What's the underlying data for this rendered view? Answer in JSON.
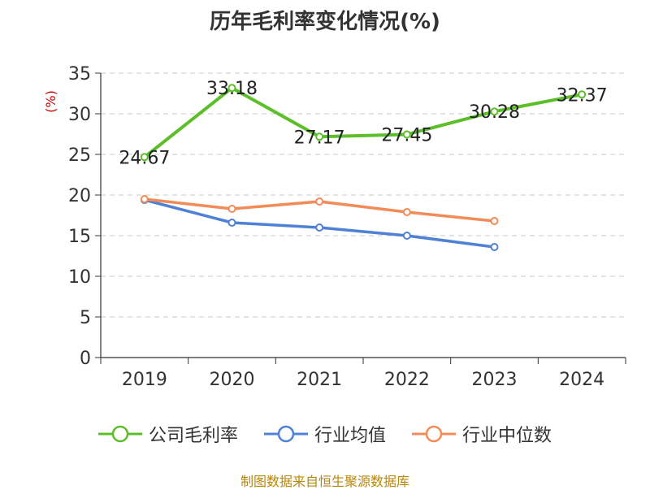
{
  "title": "历年毛利率变化情况(%)",
  "footer": "制图数据来自恒生聚源数据库",
  "colors": {
    "company": "#5cbf2a",
    "industry_avg": "#4f81d6",
    "industry_median": "#f28b58",
    "ylabel": "#cc0000"
  },
  "chart_data": {
    "type": "line",
    "title": "历年毛利率变化情况(%)",
    "xlabel": "",
    "ylabel": "(%)",
    "ylim": [
      0,
      35
    ],
    "yticks": [
      0,
      5,
      10,
      15,
      20,
      25,
      30,
      35
    ],
    "categories": [
      "2019",
      "2020",
      "2021",
      "2022",
      "2023",
      "2024"
    ],
    "grid": true,
    "legend_position": "bottom",
    "series": [
      {
        "name": "公司毛利率",
        "values": [
          24.67,
          33.18,
          27.17,
          27.45,
          30.28,
          32.37
        ],
        "labels": [
          "24.67",
          "33.18",
          "27.17",
          "27.45",
          "30.28",
          "32.37"
        ]
      },
      {
        "name": "行业均值",
        "values": [
          19.4,
          16.6,
          16.0,
          15.0,
          13.6,
          null
        ]
      },
      {
        "name": "行业中位数",
        "values": [
          19.5,
          18.3,
          19.2,
          17.9,
          16.8,
          null
        ]
      }
    ]
  }
}
